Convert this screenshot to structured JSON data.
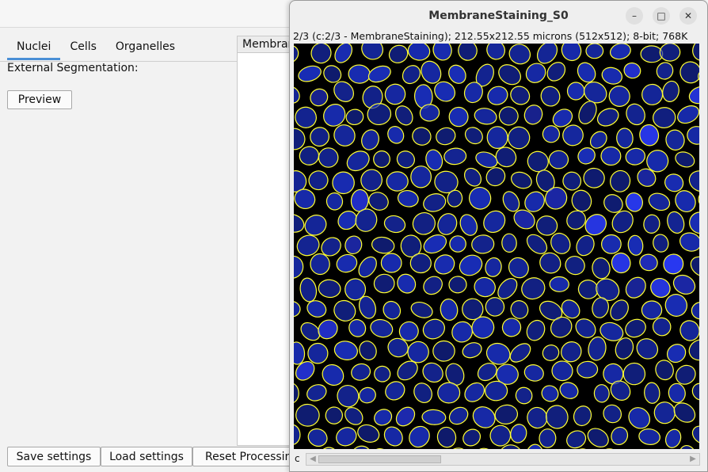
{
  "app": {
    "tabs": [
      {
        "label": "Nuclei",
        "active": true
      },
      {
        "label": "Cells",
        "active": false
      },
      {
        "label": "Organelles",
        "active": false
      }
    ],
    "external_segmentation_label": "External Segmentation:",
    "preview_label": "Preview",
    "panel_header": "Membrane",
    "save_label": "Save settings",
    "load_label": "Load settings",
    "reset_label": "Reset Processing"
  },
  "image_window": {
    "title": "MembraneStaining_S0",
    "info": "2/3 (c:2/3 - MembraneStaining); 212.55x212.55 microns (512x512); 8-bit; 768K",
    "channel_label": "c",
    "minimize_icon": "minimize-icon",
    "maximize_icon": "maximize-icon",
    "close_icon": "close-icon"
  },
  "colors": {
    "accent": "#4a8fd6",
    "nucleus_fill": "#1a2fbf",
    "outline": "#ffff33",
    "canvas_bg": "#000000"
  }
}
